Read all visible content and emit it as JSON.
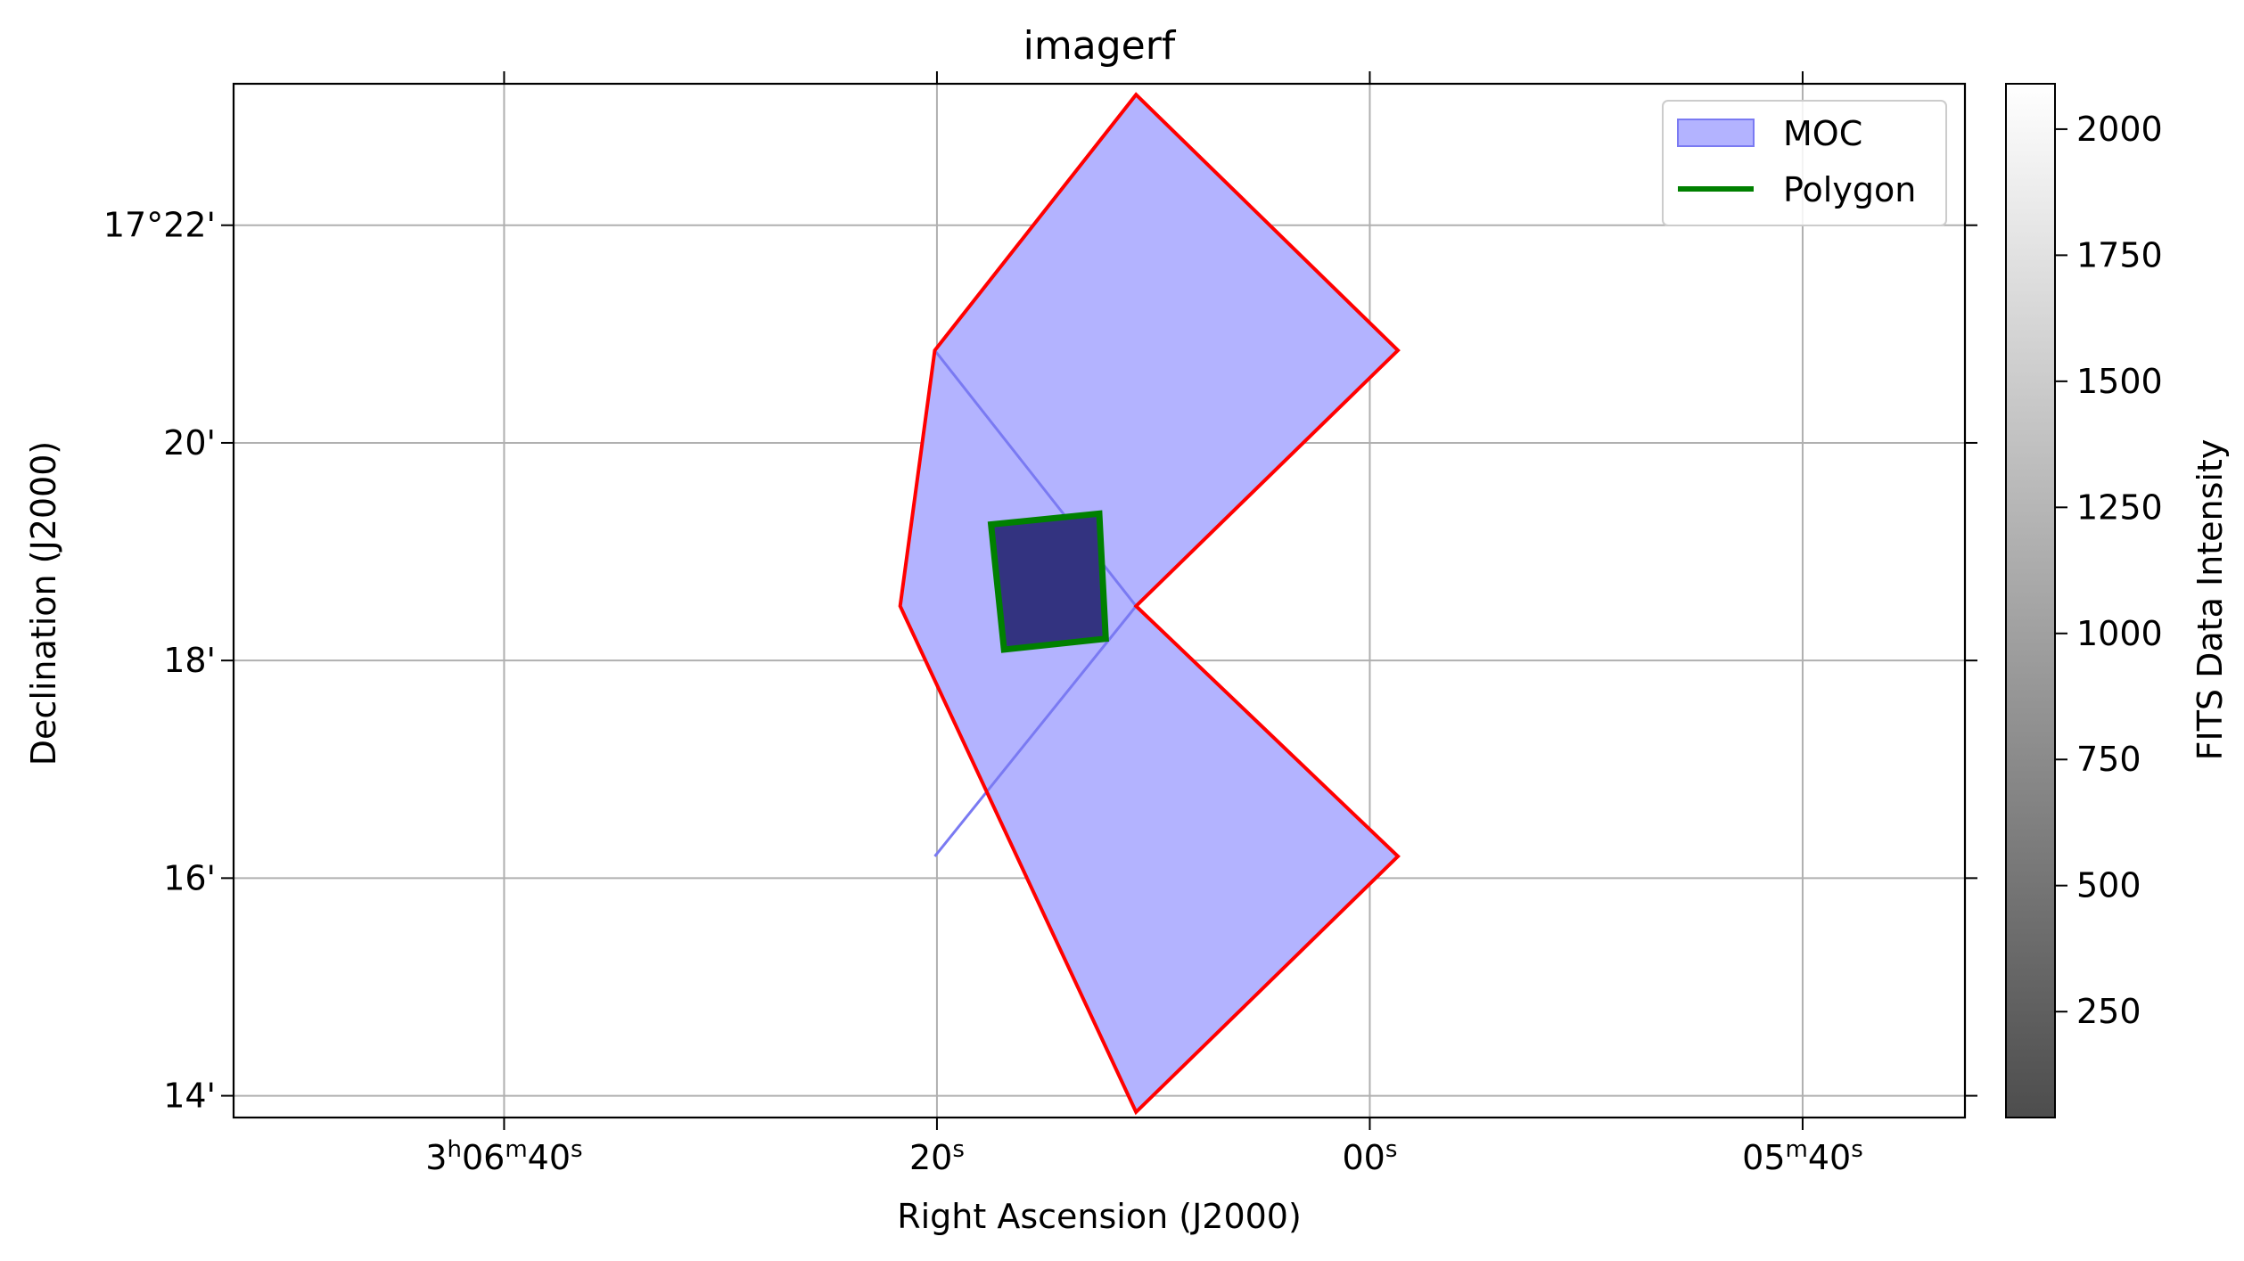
{
  "chart_data": {
    "type": "sky_image",
    "title": "imagerf",
    "xlabel": "Right Ascension (J2000)",
    "ylabel": "Declination (J2000)",
    "grid": true,
    "legend_position": "top-right",
    "x_ticks": [
      {
        "value_s": 40,
        "label": "3h06m40s"
      },
      {
        "value_s": 20,
        "label": "20s"
      },
      {
        "value_s": 0,
        "label": "00s"
      },
      {
        "value_s": -20,
        "label": "05m40s"
      }
    ],
    "y_ticks": [
      {
        "value_arcmin": 22,
        "label": "17°22'"
      },
      {
        "value_arcmin": 20,
        "label": "20'"
      },
      {
        "value_arcmin": 18,
        "label": "18'"
      },
      {
        "value_arcmin": 16,
        "label": "16'"
      },
      {
        "value_arcmin": 14,
        "label": "14'"
      }
    ],
    "ra_range_s": [
      52.5,
      -27.5
    ],
    "dec_range_arcmin": [
      13.8,
      23.3
    ],
    "series": [
      {
        "name": "MOC",
        "kind": "filled_region",
        "fill_color": "#b3b3ff",
        "edge_color": "#ff0000",
        "internal_edge_color": "#7a7af2",
        "outline_ra_dec": [
          [
            10.8,
            23.2
          ],
          [
            -1.3,
            20.85
          ],
          [
            10.8,
            18.5
          ],
          [
            -1.3,
            16.2
          ],
          [
            10.8,
            13.85
          ],
          [
            21.7,
            18.5
          ],
          [
            20.1,
            20.85
          ]
        ],
        "internal_edges_ra_dec": [
          [
            [
              20.1,
              20.85
            ],
            [
              10.8,
              18.5
            ]
          ],
          [
            [
              10.8,
              18.5
            ],
            [
              20.1,
              16.2
            ]
          ]
        ]
      },
      {
        "name": "Polygon",
        "kind": "outline",
        "edge_color": "#008000",
        "fill_color": "#333380",
        "vertices_ra_dec": [
          [
            17.5,
            19.25
          ],
          [
            12.5,
            19.35
          ],
          [
            12.2,
            18.2
          ],
          [
            16.9,
            18.1
          ]
        ]
      }
    ],
    "colorbar": {
      "label": "FITS Data Intensity",
      "range": [
        40,
        2090
      ],
      "ticks": [
        250,
        500,
        750,
        1000,
        1250,
        1500,
        1750,
        2000
      ],
      "color_low": "#4d4d4d",
      "color_high": "#ffffff"
    }
  }
}
